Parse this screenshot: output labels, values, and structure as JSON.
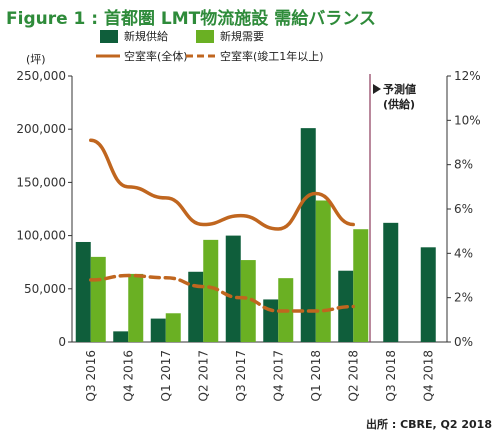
{
  "chart_data": {
    "type": "bar",
    "title": "Figure 1 : 首都圏 LMT物流施設 需給バランス",
    "title_color": "#2e8b3a",
    "left_axis_unit": "(坪)",
    "left_ylim": [
      0,
      250000
    ],
    "left_ticks": [
      "0",
      "50,000",
      "100,000",
      "150,000",
      "200,000",
      "250,000"
    ],
    "right_ylim": [
      0,
      12
    ],
    "right_ticks": [
      "0%",
      "2%",
      "4%",
      "6%",
      "8%",
      "10%",
      "12%"
    ],
    "categories": [
      "Q3 2016",
      "Q4 2016",
      "Q1 2017",
      "Q2 2017",
      "Q3 2017",
      "Q4 2017",
      "Q1 2018",
      "Q2 2018",
      "Q3 2018",
      "Q4 2018"
    ],
    "legend_position": "top",
    "grid": false,
    "forecast_label": "予測値\n(供給)",
    "forecast_start_index": 8,
    "source": "出所 : CBRE, Q2 2018",
    "series": [
      {
        "name": "新規供給",
        "kind": "bar",
        "axis": "left",
        "color": "#0f5e3b",
        "values": [
          94000,
          10000,
          22000,
          66000,
          100000,
          40000,
          201000,
          67000,
          112000,
          89000
        ]
      },
      {
        "name": "新規需要",
        "kind": "bar",
        "axis": "left",
        "color": "#6ab023",
        "values": [
          80000,
          64000,
          27000,
          96000,
          77000,
          60000,
          133000,
          106000,
          null,
          null
        ]
      },
      {
        "name": "空室率(全体)",
        "kind": "line",
        "axis": "right",
        "color": "#c0661f",
        "values": [
          9.1,
          7.0,
          6.5,
          5.3,
          5.7,
          5.1,
          6.7,
          5.3,
          null,
          null
        ]
      },
      {
        "name": "空室率(竣工1年以上)",
        "kind": "dashed-line",
        "axis": "right",
        "color": "#c0661f",
        "values": [
          2.8,
          3.0,
          2.9,
          2.5,
          2.0,
          1.4,
          1.4,
          1.6,
          null,
          null
        ]
      }
    ]
  }
}
